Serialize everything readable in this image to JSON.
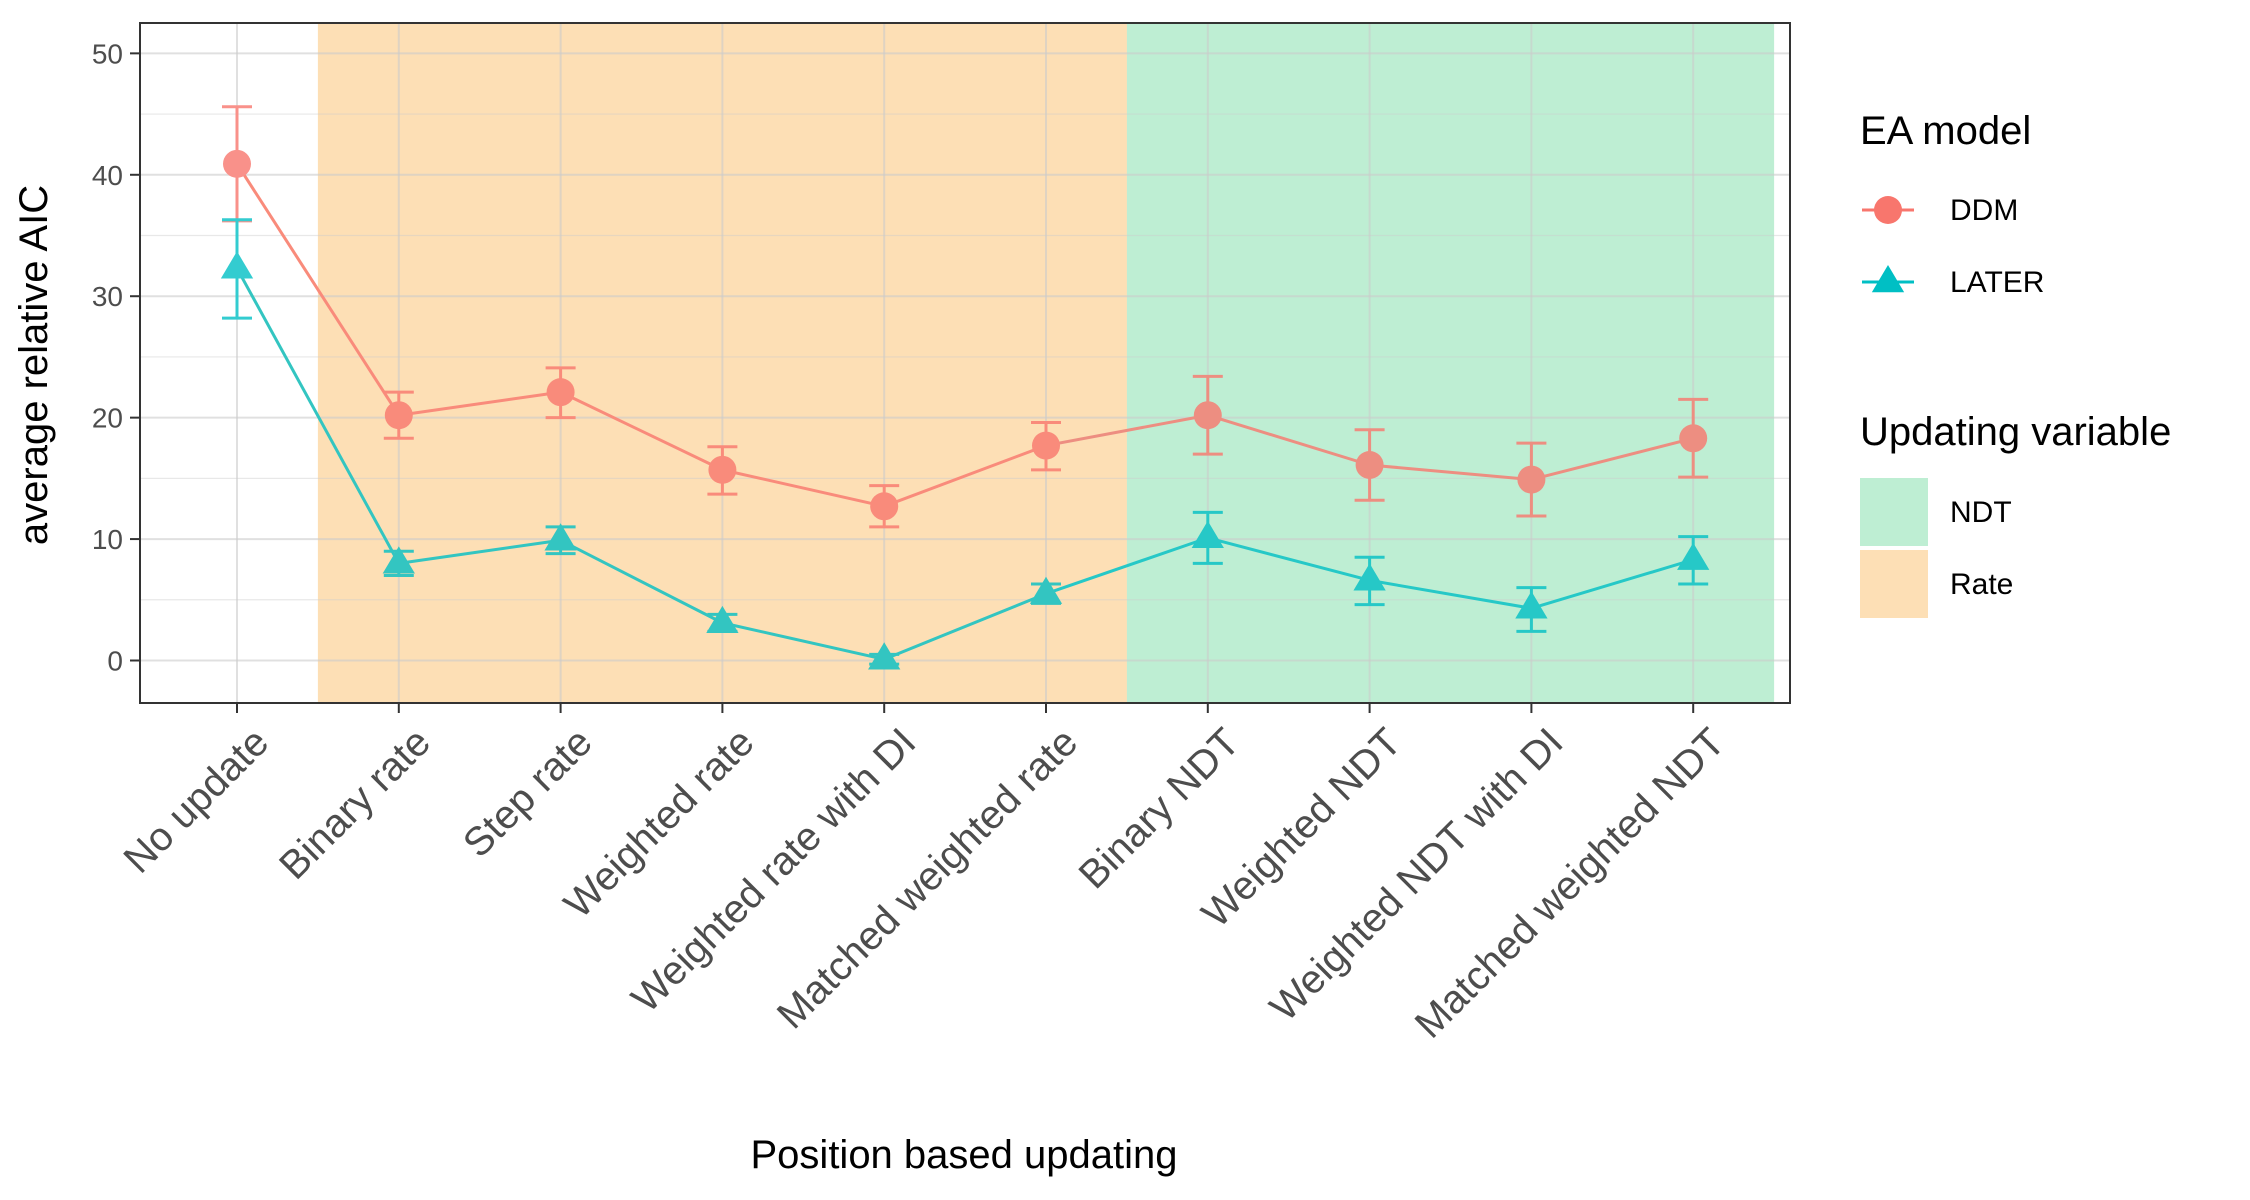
{
  "chart_data": {
    "type": "line",
    "title": "",
    "xlabel": "Position based updating",
    "ylabel": "average relative AIC",
    "ylim": [
      -3.5,
      52.5
    ],
    "yticks": [
      0,
      10,
      20,
      30,
      40,
      50
    ],
    "grid": true,
    "categories": [
      "No update",
      "Binary rate",
      "Step rate",
      "Weighted rate",
      "Weighted rate with DI",
      "Matched weighted rate",
      "Binary NDT",
      "Weighted NDT",
      "Weighted NDT with DI",
      "Matched weighted NDT"
    ],
    "series": [
      {
        "name": "DDM",
        "marker": "circle",
        "color": "#F8766D",
        "values": [
          40.9,
          20.2,
          22.1,
          15.7,
          12.7,
          17.7,
          20.2,
          16.1,
          14.9,
          18.3
        ],
        "err_low": [
          36.2,
          18.3,
          20.0,
          13.7,
          11.0,
          15.7,
          17.0,
          13.2,
          11.9,
          15.1
        ],
        "err_high": [
          45.6,
          22.1,
          24.1,
          17.6,
          14.4,
          19.6,
          23.4,
          19.0,
          17.9,
          21.5
        ]
      },
      {
        "name": "LATER",
        "marker": "triangle",
        "color": "#00BFC4",
        "values": [
          32.3,
          8.0,
          9.9,
          3.1,
          0.1,
          5.5,
          10.1,
          6.6,
          4.3,
          8.3
        ],
        "err_low": [
          28.2,
          7.0,
          8.8,
          2.4,
          -0.3,
          4.7,
          8.0,
          4.6,
          2.4,
          6.3
        ],
        "err_high": [
          36.3,
          9.0,
          11.0,
          3.8,
          0.5,
          6.3,
          12.2,
          8.5,
          6.0,
          10.2
        ]
      }
    ],
    "bands": [
      {
        "name": "Rate",
        "from_index": 1,
        "to_index": 5,
        "color": "#FBBF6B"
      },
      {
        "name": "NDT",
        "from_index": 6,
        "to_index": 9,
        "color": "#7EDDA7"
      }
    ],
    "legend": {
      "placement": "right",
      "ea_title": "EA model",
      "ea_items": [
        "DDM",
        "LATER"
      ],
      "var_title": "Updating variable",
      "var_items": [
        "NDT",
        "Rate"
      ]
    }
  }
}
